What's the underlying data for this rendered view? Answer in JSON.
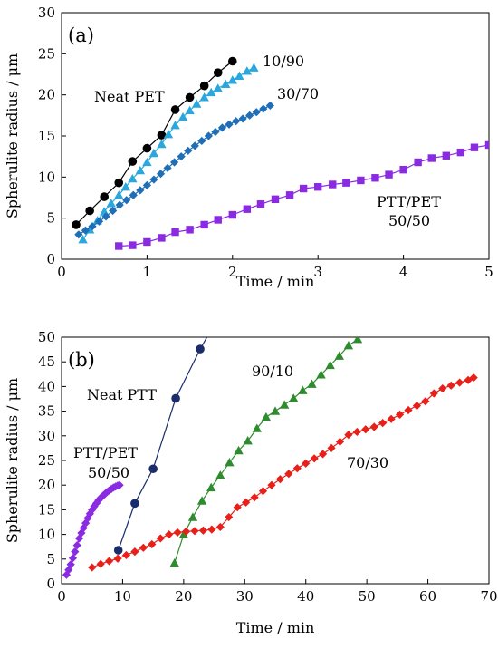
{
  "chart_data": [
    {
      "type": "scatter",
      "panel_label": "(a)",
      "xlabel": "Time / min",
      "ylabel": "Spherulite radius / μm",
      "xlim": [
        0,
        5
      ],
      "ylim": [
        0,
        30
      ],
      "xticks": [
        "0",
        "1",
        "2",
        "3",
        "4",
        "5"
      ],
      "yticks": [
        "0",
        "5",
        "10",
        "15",
        "20",
        "25",
        "30"
      ],
      "grid": false,
      "legend": "none",
      "annotations": [
        "Neat PET",
        "10/90",
        "30/70",
        "PTT/PET",
        "50/50"
      ],
      "series": [
        {
          "color": "#000000",
          "marker": "circle",
          "line": true,
          "x": [
            0.17,
            0.33,
            0.5,
            0.67,
            0.83,
            1.0,
            1.17,
            1.33,
            1.5,
            1.67,
            1.83,
            2.0
          ],
          "y": [
            4.2,
            5.9,
            7.6,
            9.3,
            11.9,
            13.5,
            15.1,
            18.2,
            19.7,
            21.1,
            22.7,
            24.1
          ]
        },
        {
          "color": "#2aa7dc",
          "marker": "triangle",
          "line": true,
          "x": [
            0.25,
            0.33,
            0.42,
            0.5,
            0.58,
            0.67,
            0.75,
            0.83,
            0.92,
            1.0,
            1.08,
            1.17,
            1.25,
            1.33,
            1.42,
            1.5,
            1.58,
            1.67,
            1.75,
            1.83,
            1.92,
            2.0,
            2.08,
            2.17,
            2.25
          ],
          "y": [
            2.4,
            3.6,
            4.7,
            5.8,
            6.8,
            7.8,
            8.8,
            9.8,
            10.8,
            11.8,
            12.9,
            14.0,
            15.2,
            16.3,
            17.3,
            18.1,
            18.9,
            19.7,
            20.3,
            20.8,
            21.3,
            21.8,
            22.3,
            22.9,
            23.3
          ]
        },
        {
          "color": "#1f6fb8",
          "marker": "diamond",
          "line": true,
          "x": [
            0.2,
            0.28,
            0.36,
            0.44,
            0.52,
            0.6,
            0.68,
            0.76,
            0.84,
            0.92,
            1.0,
            1.08,
            1.16,
            1.24,
            1.32,
            1.4,
            1.48,
            1.56,
            1.64,
            1.72,
            1.8,
            1.88,
            1.96,
            2.04,
            2.12,
            2.2,
            2.28,
            2.36,
            2.44
          ],
          "y": [
            3.0,
            3.5,
            4.0,
            4.6,
            5.2,
            5.9,
            6.6,
            7.2,
            7.8,
            8.4,
            9.0,
            9.7,
            10.4,
            11.1,
            11.8,
            12.5,
            13.2,
            13.8,
            14.4,
            15.0,
            15.5,
            16.0,
            16.4,
            16.8,
            17.1,
            17.5,
            17.9,
            18.3,
            18.7
          ]
        },
        {
          "color": "#8a2be2",
          "marker": "square",
          "line": true,
          "x": [
            0.67,
            0.83,
            1.0,
            1.17,
            1.33,
            1.5,
            1.67,
            1.83,
            2.0,
            2.17,
            2.33,
            2.5,
            2.67,
            2.83,
            3.0,
            3.17,
            3.33,
            3.5,
            3.67,
            3.83,
            4.0,
            4.17,
            4.33,
            4.5,
            4.67,
            4.83,
            5.0
          ],
          "y": [
            1.6,
            1.7,
            2.1,
            2.6,
            3.3,
            3.6,
            4.2,
            4.8,
            5.4,
            6.1,
            6.7,
            7.3,
            7.8,
            8.6,
            8.8,
            9.1,
            9.3,
            9.6,
            9.9,
            10.3,
            10.9,
            11.8,
            12.3,
            12.6,
            13.0,
            13.6,
            13.9
          ]
        }
      ]
    },
    {
      "type": "scatter",
      "panel_label": "(b)",
      "xlabel": "Time / min",
      "ylabel": "Spherulite radius / μm",
      "xlim": [
        0,
        70
      ],
      "ylim": [
        0,
        50
      ],
      "xticks": [
        "0",
        "10",
        "20",
        "30",
        "40",
        "50",
        "60",
        "70"
      ],
      "yticks": [
        "0",
        "5",
        "10",
        "15",
        "20",
        "25",
        "30",
        "35",
        "40",
        "45",
        "50"
      ],
      "grid": false,
      "legend": "none",
      "annotations": [
        "Neat PTT",
        "90/10",
        "PTT/PET",
        "50/50",
        "70/30"
      ],
      "series": [
        {
          "color": "#1a2c6b",
          "marker": "circle",
          "line": true,
          "x": [
            9.3,
            12.0,
            15.0,
            18.7,
            22.7,
            24.5
          ],
          "y": [
            6.8,
            16.3,
            23.3,
            37.6,
            47.6,
            51.5
          ]
        },
        {
          "color": "#2e8b2e",
          "marker": "triangle",
          "line": true,
          "x": [
            18.5,
            20.0,
            21.5,
            23.0,
            24.5,
            26.0,
            27.5,
            29.0,
            30.5,
            32.0,
            33.5,
            35.0,
            36.5,
            38.0,
            39.5,
            41.0,
            42.5,
            44.0,
            45.5,
            47.0,
            48.5
          ],
          "y": [
            4.2,
            10.0,
            13.5,
            16.8,
            19.5,
            22.0,
            24.6,
            27.0,
            29.0,
            31.5,
            33.8,
            35.0,
            36.3,
            37.6,
            39.2,
            40.5,
            42.4,
            44.3,
            46.2,
            48.3,
            49.6
          ]
        },
        {
          "color": "#e8201a",
          "marker": "diamond",
          "line": true,
          "x": [
            5.0,
            6.4,
            7.8,
            9.2,
            10.6,
            12.0,
            13.4,
            14.8,
            16.2,
            17.6,
            19.0,
            20.4,
            21.8,
            23.2,
            24.6,
            26.0,
            27.4,
            28.8,
            30.2,
            31.6,
            33.0,
            34.4,
            35.8,
            37.2,
            38.6,
            40.0,
            41.4,
            42.8,
            44.2,
            45.6,
            47.0,
            48.4,
            49.8,
            51.2,
            52.6,
            54.0,
            55.4,
            56.8,
            58.2,
            59.6,
            61.0,
            62.4,
            63.8,
            65.2,
            66.6,
            67.5
          ],
          "y": [
            3.3,
            4.0,
            4.6,
            5.1,
            5.8,
            6.5,
            7.3,
            8.0,
            9.2,
            10.0,
            10.4,
            10.6,
            10.7,
            10.8,
            11.0,
            11.5,
            13.5,
            15.5,
            16.5,
            17.5,
            18.8,
            20.0,
            21.2,
            22.3,
            23.4,
            24.4,
            25.4,
            26.3,
            27.5,
            28.8,
            30.2,
            30.8,
            31.3,
            31.8,
            32.6,
            33.4,
            34.3,
            35.2,
            36.1,
            37.0,
            38.6,
            39.6,
            40.2,
            40.8,
            41.3,
            41.8
          ]
        },
        {
          "color": "#8a2be2",
          "marker": "diamond",
          "line": true,
          "x": [
            0.8,
            1.15,
            1.5,
            1.85,
            2.2,
            2.55,
            2.9,
            3.25,
            3.6,
            3.95,
            4.3,
            4.65,
            5.0,
            5.35,
            5.7,
            6.05,
            6.4,
            6.75,
            7.1,
            7.45,
            7.8,
            8.15,
            8.5,
            8.85,
            9.2,
            9.5
          ],
          "y": [
            1.8,
            2.8,
            3.9,
            5.2,
            6.5,
            7.8,
            9.2,
            10.3,
            11.3,
            12.3,
            13.3,
            14.2,
            15.0,
            15.7,
            16.3,
            16.9,
            17.4,
            17.8,
            18.2,
            18.6,
            18.9,
            19.2,
            19.5,
            19.7,
            19.9,
            20.0
          ]
        }
      ]
    }
  ]
}
